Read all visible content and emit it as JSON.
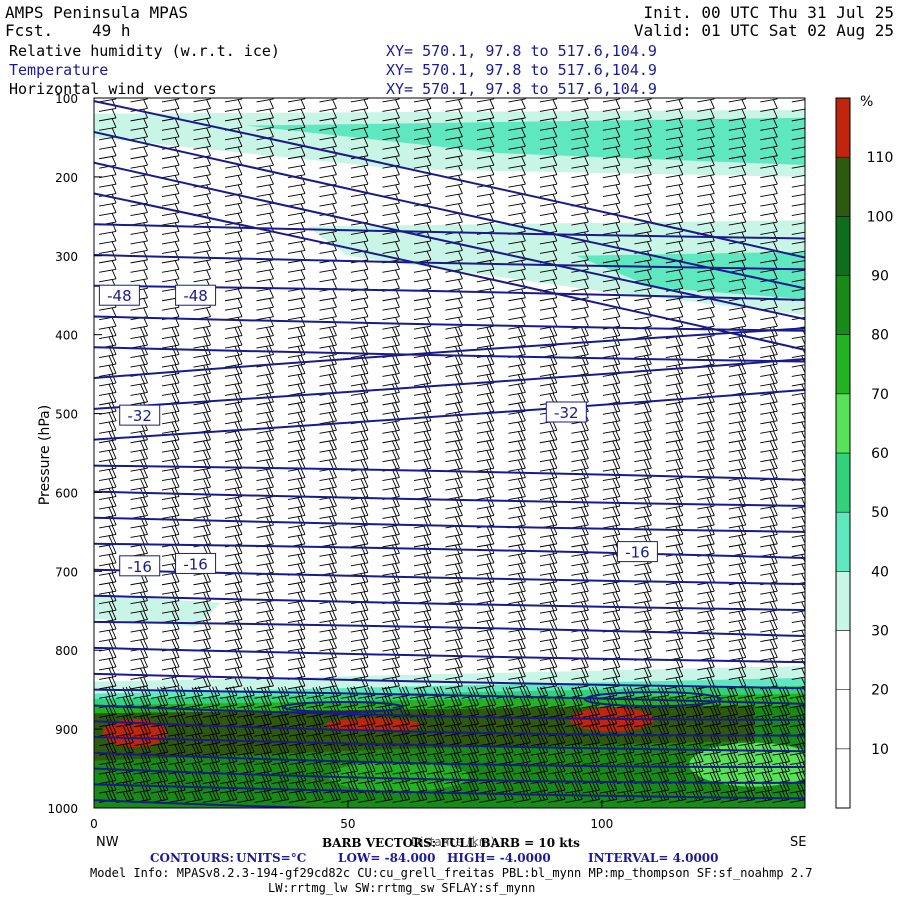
{
  "header": {
    "model": "AMPS Peninsula MPAS",
    "fcst_label": "Fcst.",
    "fcst_value": "49 h",
    "init": "Init. 00 UTC Thu 31 Jul 25",
    "valid": "Valid: 01 UTC Sat 02 Aug 25",
    "fields": [
      {
        "name": "Relative humidity (w.r.t. ice)",
        "xy": "XY= 570.1, 97.8 to 517.6,104.9"
      },
      {
        "name": "Temperature",
        "xy": "XY= 570.1, 97.8 to 517.6,104.9"
      },
      {
        "name": "Horizontal wind vectors",
        "xy": "XY= 570.1, 97.8 to 517.6,104.9"
      }
    ]
  },
  "colors": {
    "contour": "#1a1a8c",
    "accent_blue": "#1a1a9a",
    "rh_scale": [
      "#ffffff",
      "#ffffff",
      "#ffffff",
      "#c8f5e6",
      "#5fe8c0",
      "#33d17a",
      "#57e257",
      "#22b222",
      "#188a18",
      "#0e6e1a",
      "#2e5a10",
      "#c0250e"
    ]
  },
  "chart_data": {
    "type": "heatmap",
    "title": "",
    "xlabel": "Distance (km)",
    "ylabel": "Pressure (hPa)",
    "x_ticks": [
      0,
      50,
      100
    ],
    "x_range": [
      0,
      140
    ],
    "y_ticks": [
      100,
      200,
      300,
      400,
      500,
      600,
      700,
      800,
      900,
      1000
    ],
    "y_range": [
      100,
      1000
    ],
    "y_inverted": true,
    "endpoints": {
      "left": "NW",
      "right": "SE"
    },
    "colorbar": {
      "unit": "%",
      "ticks": [
        10,
        20,
        30,
        40,
        50,
        60,
        70,
        80,
        90,
        100,
        110
      ],
      "bounds": [
        0,
        10,
        20,
        30,
        40,
        50,
        60,
        70,
        80,
        90,
        100,
        110,
        120
      ]
    },
    "contour_labels": [
      {
        "text": "-48",
        "x": 5,
        "p": 350
      },
      {
        "text": "-48",
        "x": 20,
        "p": 350
      },
      {
        "text": "-32",
        "x": 9,
        "p": 502
      },
      {
        "text": "-32",
        "x": 93,
        "p": 498
      },
      {
        "text": "-16",
        "x": 9,
        "p": 693
      },
      {
        "text": "-16",
        "x": 20,
        "p": 690
      },
      {
        "text": "-16",
        "x": 107,
        "p": 675
      }
    ],
    "barb_note": "BARB VECTORS: FULL BARB = 10 kts",
    "contours_info": {
      "prefix": "CONTOURS:",
      "units": "UNITS=°C",
      "low": "LOW= -84.000",
      "high": "HIGH= -4.0000",
      "interval": "INTERVAL= 4.0000",
      "low_value": -84,
      "high_value": -4,
      "interval_value": 4
    }
  },
  "footer": {
    "model_info": "Model Info: MPASv8.2.3-194-gf29cd82c CU:cu_grell_freitas PBL:bl_mynn MP:mp_thompson SF:sf_noahmp 2.7",
    "model_info2": "LW:rrtmg_lw SW:rrtmg_sw SFLAY:sf_mynn"
  }
}
